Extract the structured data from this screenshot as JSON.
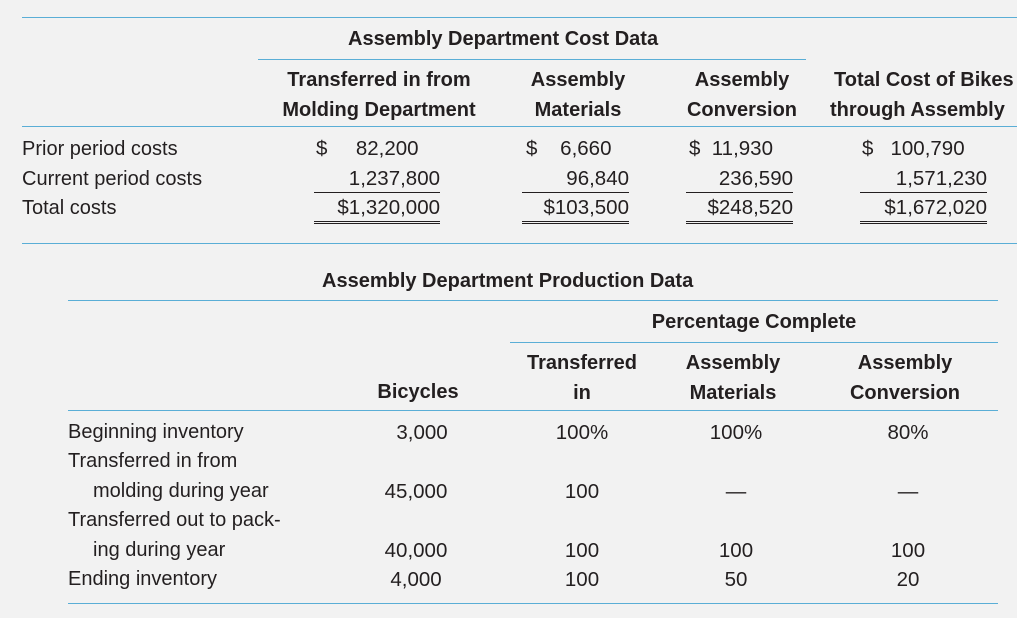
{
  "cost": {
    "title": "Assembly Department Cost Data",
    "col_headers": [
      [
        "Transferred in from",
        "Molding Department"
      ],
      [
        "Assembly",
        "Materials"
      ],
      [
        "Assembly",
        "Conversion"
      ],
      [
        "Total Cost of Bikes",
        "through Assembly"
      ]
    ],
    "rows": [
      {
        "label": "Prior period costs",
        "cells": [
          "$     82,200",
          "$    6,660",
          "$  11,930",
          "$   100,790"
        ]
      },
      {
        "label": "Current period costs",
        "cells": [
          "1,237,800",
          "96,840",
          "236,590",
          "1,571,230"
        ]
      },
      {
        "label": "Total costs",
        "cells": [
          "$1,320,000",
          "$103,500",
          "$248,520",
          "$1,672,020"
        ]
      }
    ]
  },
  "production": {
    "title": "Assembly Department Production Data",
    "pct_header": "Percentage Complete",
    "col_headers": [
      [
        "Bicycles"
      ],
      [
        "Transferred",
        "in"
      ],
      [
        "Assembly",
        "Materials"
      ],
      [
        "Assembly",
        "Conversion"
      ]
    ],
    "rows": [
      {
        "label": [
          "Beginning inventory"
        ],
        "cells": [
          "3,000",
          "100%",
          "100%",
          "80%"
        ]
      },
      {
        "label": [
          "Transferred in from",
          "molding during year"
        ],
        "cells": [
          "45,000",
          "100",
          "—",
          "—"
        ]
      },
      {
        "label": [
          "Transferred out to pack-",
          "ing during year"
        ],
        "cells": [
          "40,000",
          "100",
          "100",
          "100"
        ]
      },
      {
        "label": [
          "Ending inventory"
        ],
        "cells": [
          "4,000",
          "100",
          "50",
          "20"
        ]
      }
    ]
  }
}
